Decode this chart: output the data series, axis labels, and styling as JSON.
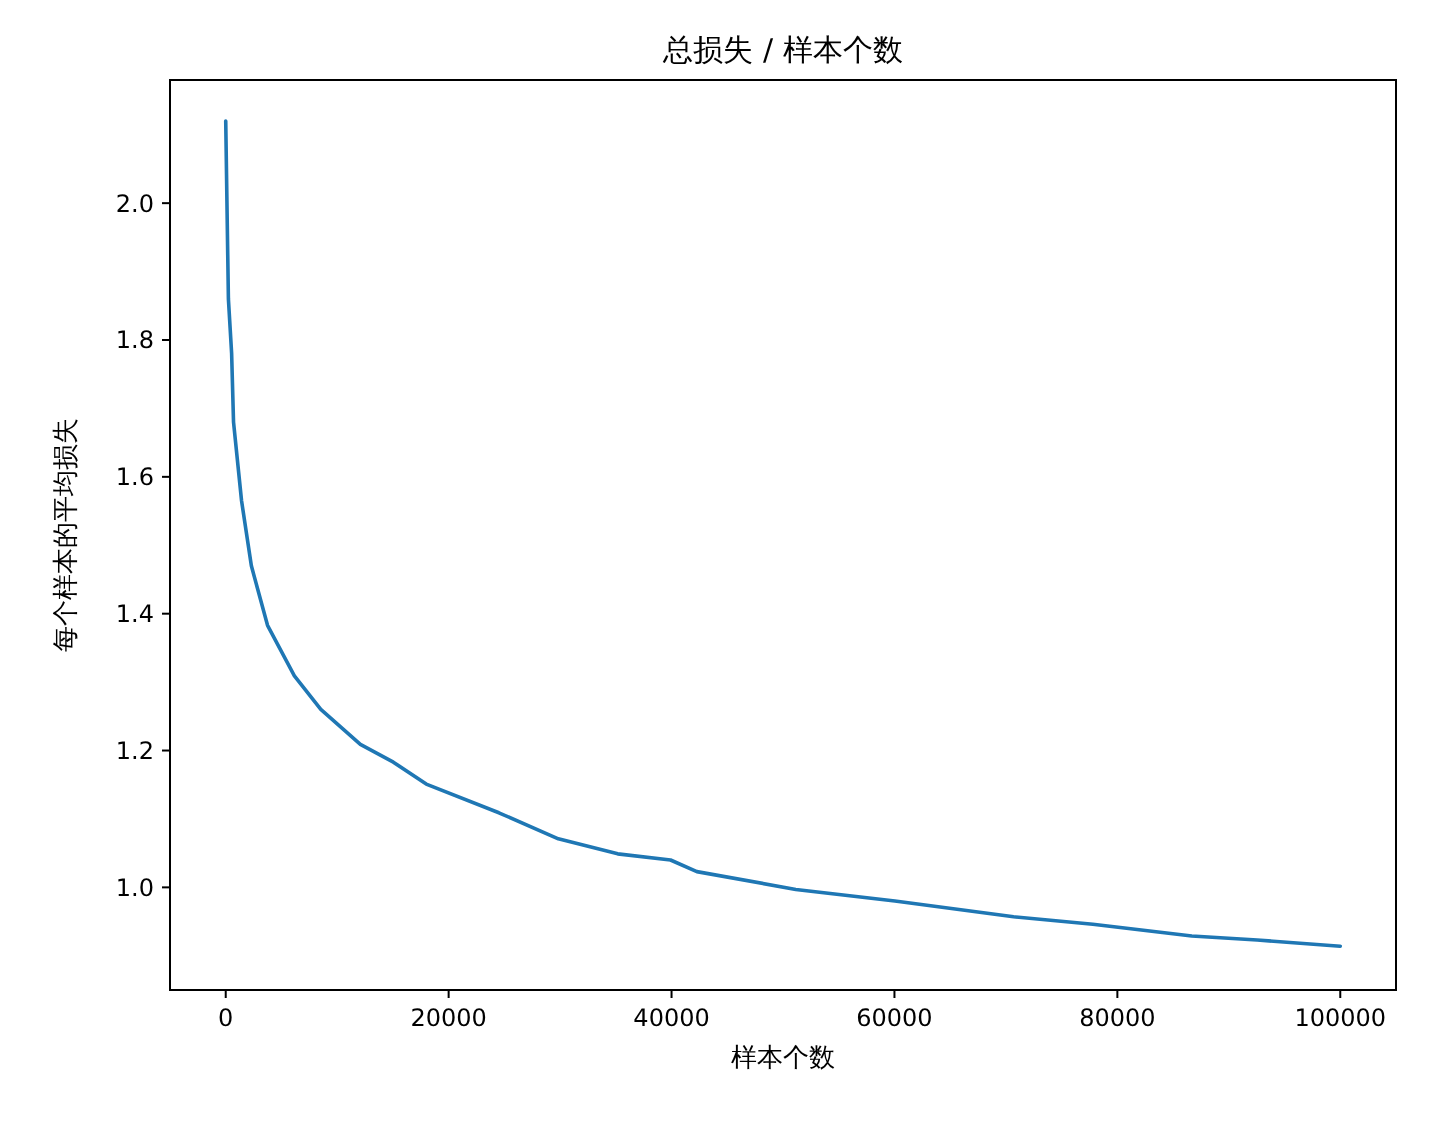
{
  "chart_data": {
    "type": "line",
    "title": "总损失 / 样本个数",
    "xlabel": "样本个数",
    "ylabel": "每个样本的平均损失",
    "x": [
      0,
      240,
      530,
      700,
      1420,
      2300,
      3750,
      6160,
      8530,
      12080,
      15040,
      17990,
      24510,
      29840,
      35170,
      39910,
      42270,
      51150,
      60040,
      70690,
      77800,
      86680,
      92540,
      100000
    ],
    "series": [
      {
        "color": "#1f77b4",
        "values": [
          2.12,
          1.86,
          1.78,
          1.68,
          1.565,
          1.47,
          1.383,
          1.309,
          1.26,
          1.209,
          1.183,
          1.151,
          1.109,
          1.071,
          1.049,
          1.04,
          1.023,
          0.997,
          0.98,
          0.957,
          0.946,
          0.929,
          0.923,
          0.914
        ]
      }
    ],
    "xlim": [
      -5000,
      105000
    ],
    "xticks": [
      0,
      20000,
      40000,
      60000,
      80000,
      100000
    ],
    "ylim": [
      0.85,
      2.18
    ],
    "yticks": [
      {
        "value": 1.0,
        "label": "1.0"
      },
      {
        "value": 1.2,
        "label": "1.2"
      },
      {
        "value": 1.4,
        "label": "1.4"
      },
      {
        "value": 1.6,
        "label": "1.6"
      },
      {
        "value": 1.8,
        "label": "1.8"
      },
      {
        "value": 2.0,
        "label": "2.0"
      }
    ],
    "grid": false,
    "marker": "none",
    "line_style": "solid"
  }
}
